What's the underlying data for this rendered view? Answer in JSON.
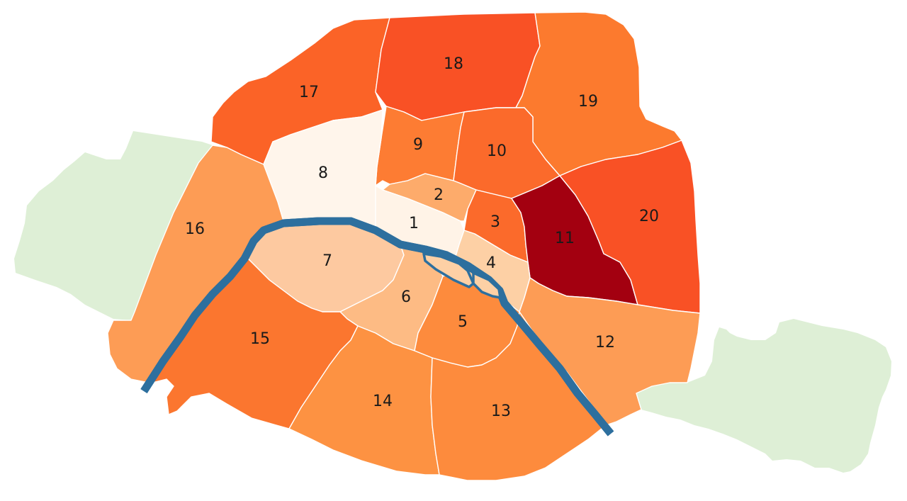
{
  "map": {
    "river_color": "#2d6f9e",
    "park_color": "#deefd6",
    "parks": [
      {
        "name": "bois-de-boulogne"
      },
      {
        "name": "bois-de-vincennes"
      }
    ],
    "arrondissements": [
      {
        "id": "1",
        "label": "1",
        "color": "#fff3e7"
      },
      {
        "id": "2",
        "label": "2",
        "color": "#fdab6b"
      },
      {
        "id": "3",
        "label": "3",
        "color": "#fb6a2b"
      },
      {
        "id": "4",
        "label": "4",
        "color": "#fdd0a5"
      },
      {
        "id": "5",
        "label": "5",
        "color": "#fd8b3d"
      },
      {
        "id": "6",
        "label": "6",
        "color": "#fdbb84"
      },
      {
        "id": "7",
        "label": "7",
        "color": "#fdc9a0"
      },
      {
        "id": "8",
        "label": "8",
        "color": "#fff5eb"
      },
      {
        "id": "9",
        "label": "9",
        "color": "#fd7c33"
      },
      {
        "id": "10",
        "label": "10",
        "color": "#fb6a2b"
      },
      {
        "id": "11",
        "label": "11",
        "color": "#a30010"
      },
      {
        "id": "12",
        "label": "12",
        "color": "#fd9c55"
      },
      {
        "id": "13",
        "label": "13",
        "color": "#fd8b3d"
      },
      {
        "id": "14",
        "label": "14",
        "color": "#fd9242"
      },
      {
        "id": "15",
        "label": "15",
        "color": "#fb762f"
      },
      {
        "id": "16",
        "label": "16",
        "color": "#fd9c55"
      },
      {
        "id": "17",
        "label": "17",
        "color": "#fb6327"
      },
      {
        "id": "18",
        "label": "18",
        "color": "#f95125"
      },
      {
        "id": "19",
        "label": "19",
        "color": "#fc7a2e"
      },
      {
        "id": "20",
        "label": "20",
        "color": "#f95125"
      }
    ]
  }
}
